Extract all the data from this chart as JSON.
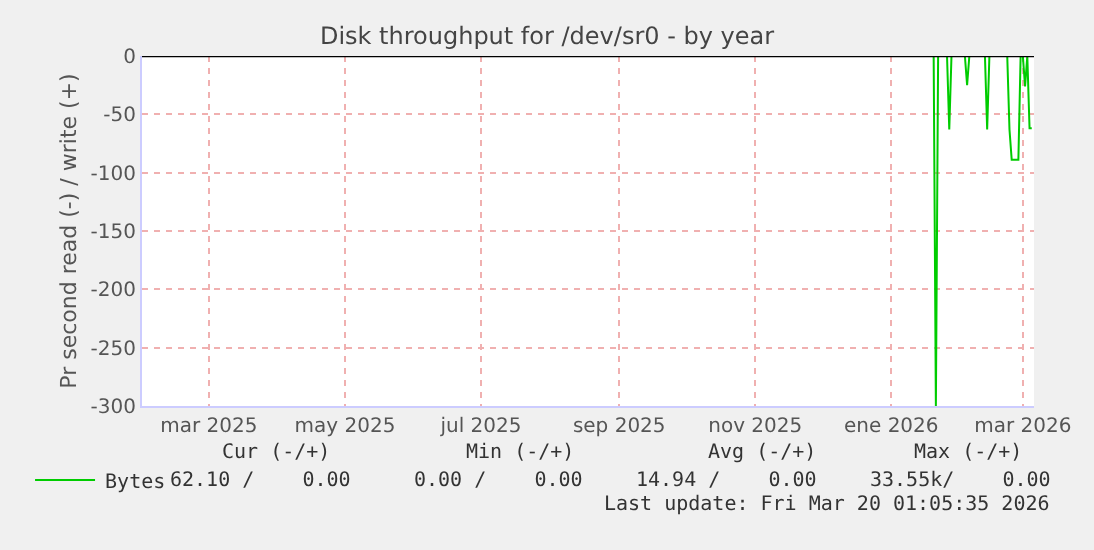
{
  "chart_data": {
    "type": "line",
    "title": "Disk throughput for /dev/sr0 - by year",
    "ylabel": "Pr second read (-) / write (+)",
    "xlim": [
      "2025-02-13",
      "2026-03-20"
    ],
    "xticks": [
      {
        "value": "2025-03-15",
        "label": "mar 2025"
      },
      {
        "value": "2025-05-15",
        "label": "may 2025"
      },
      {
        "value": "2025-07-15",
        "label": "jul 2025"
      },
      {
        "value": "2025-09-15",
        "label": "sep 2025"
      },
      {
        "value": "2025-11-15",
        "label": "nov 2025"
      },
      {
        "value": "2026-01-15",
        "label": "ene 2026"
      },
      {
        "value": "2026-03-15",
        "label": "mar 2026"
      }
    ],
    "ylim": [
      -300,
      0
    ],
    "yticks": [
      0,
      -50,
      -100,
      -150,
      -200,
      -250,
      -300
    ],
    "grid": true,
    "legend": "bottom left",
    "marker": "none",
    "line_style": "solid",
    "ref_lines": [
      {
        "axis": "y",
        "value": 0,
        "color": "#000000"
      }
    ],
    "series": [
      {
        "name": "Bytes",
        "color": "#00cc00",
        "x": [
          "2025-02-13",
          "2026-02-03",
          "2026-02-04",
          "2026-02-05",
          "2026-02-09",
          "2026-02-10",
          "2026-02-11",
          "2026-02-17",
          "2026-02-18",
          "2026-02-19",
          "2026-02-26",
          "2026-02-27",
          "2026-02-28",
          "2026-03-08",
          "2026-03-09",
          "2026-03-10",
          "2026-03-13",
          "2026-03-14",
          "2026-03-15",
          "2026-03-16",
          "2026-03-17",
          "2026-03-18",
          "2026-03-19"
        ],
        "values": [
          0,
          0,
          -300,
          0,
          0,
          -63,
          0,
          0,
          -25,
          0,
          0,
          -63,
          0,
          0,
          -63,
          -89,
          -89,
          0,
          0,
          -26,
          0,
          -62,
          -62
        ]
      }
    ],
    "annotations": [
      "Cur (-/+)",
      "Min (-/+)",
      "Avg (-/+)",
      "Max (-/+)",
      "62.10 /    0.00",
      "0.00 /    0.00",
      "14.94 /    0.00",
      "33.55k/    0.00",
      "Last update: Fri Mar 20 01:05:35 2026"
    ]
  }
}
